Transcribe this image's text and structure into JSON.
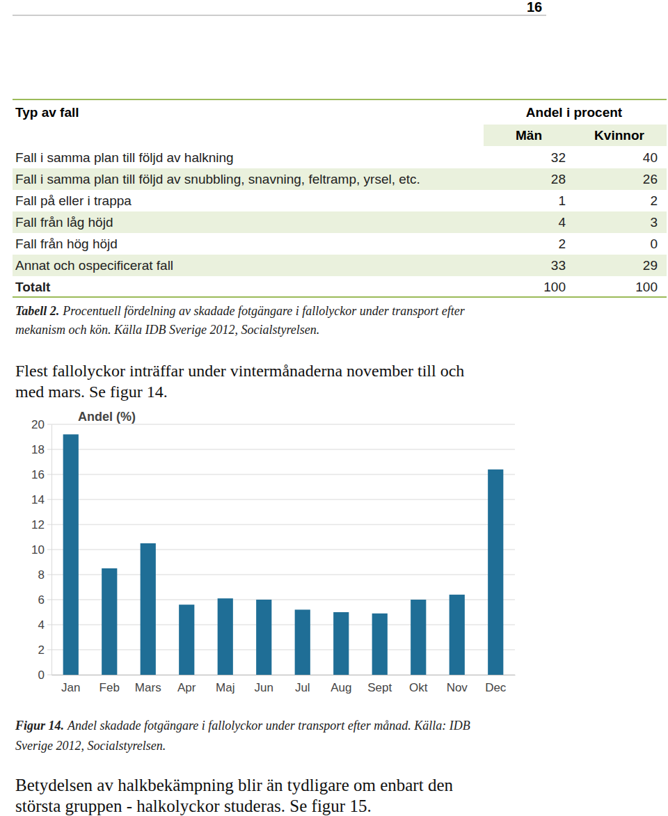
{
  "page_number": "16",
  "table": {
    "header": {
      "column": "Typ av fall",
      "group": "Andel i procent",
      "subcolumns": [
        "Män",
        "Kvinnor"
      ]
    },
    "rows": [
      [
        "Fall i samma plan till följd av halkning",
        32,
        40
      ],
      [
        "Fall i samma plan till följd av snubbling, snavning, feltramp, yrsel, etc.",
        28,
        26
      ],
      [
        "Fall på eller i trappa",
        1,
        2
      ],
      [
        "Fall från låg höjd",
        4,
        3
      ],
      [
        "Fall från hög höjd",
        2,
        0
      ],
      [
        "Annat och ospecificerat fall",
        33,
        29
      ],
      [
        "Totalt",
        100,
        100
      ]
    ],
    "caption": {
      "label": "Tabell 2.",
      "lines": [
        "Procentuell fördelning av skadade fotgängare i fallolyckor under transport efter",
        "mekanism och kön. Källa IDB Sverige 2012, Socialstyrelsen."
      ]
    }
  },
  "intro": {
    "lines": [
      "Flest fallolyckor inträffar under vintermånaderna november till och",
      "med mars. Se figur 14."
    ]
  },
  "chart_data": {
    "type": "bar",
    "y_label": "Andel (%)",
    "categories": [
      "Jan",
      "Feb",
      "Mars",
      "Apr",
      "Maj",
      "Jun",
      "Jul",
      "Aug",
      "Sept",
      "Okt",
      "Nov",
      "Dec"
    ],
    "values": [
      19.2,
      8.5,
      10.5,
      5.6,
      6.1,
      6.0,
      5.2,
      5.0,
      4.9,
      6.0,
      6.4,
      16.4
    ],
    "color": "#1f6e96",
    "ylim": [
      0,
      20
    ],
    "yticks": [
      0,
      2,
      4,
      6,
      8,
      10,
      12,
      14,
      16,
      18,
      20
    ],
    "grid": true
  },
  "figure_caption": {
    "label": "Figur 14.",
    "lines": [
      "Andel skadade fotgängare i fallolyckor under transport efter månad. Källa: IDB",
      "Sverige 2012, Socialstyrelsen."
    ]
  },
  "outro": {
    "lines": [
      "Betydelsen av halkbekämpning blir än tydligare om enbart den",
      "största gruppen - halkolyckor studeras. Se figur 15."
    ]
  }
}
